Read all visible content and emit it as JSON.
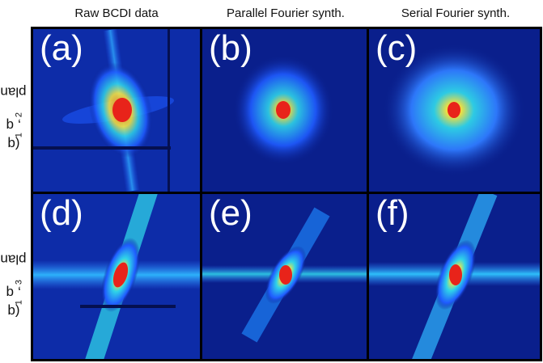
{
  "columns": [
    "Raw BCDI data",
    "Parallel Fourier synth.",
    "Serial Fourier synth."
  ],
  "rows": [
    {
      "prefix": "(q",
      "s1": "1",
      "mid": ", q",
      "s2": "2",
      "suffix": ") plane"
    },
    {
      "prefix": "(q",
      "s1": "1",
      "mid": ", q",
      "s2": "3",
      "suffix": ") plane"
    }
  ],
  "panels": [
    "(a)",
    "(b)",
    "(c)",
    "(d)",
    "(e)",
    "(f)"
  ],
  "colors": {
    "background": "#0a1f8c",
    "low": "#1f5bff",
    "mid": "#2fd3e8",
    "high": "#ffe83a",
    "peak": "#e8231a"
  }
}
